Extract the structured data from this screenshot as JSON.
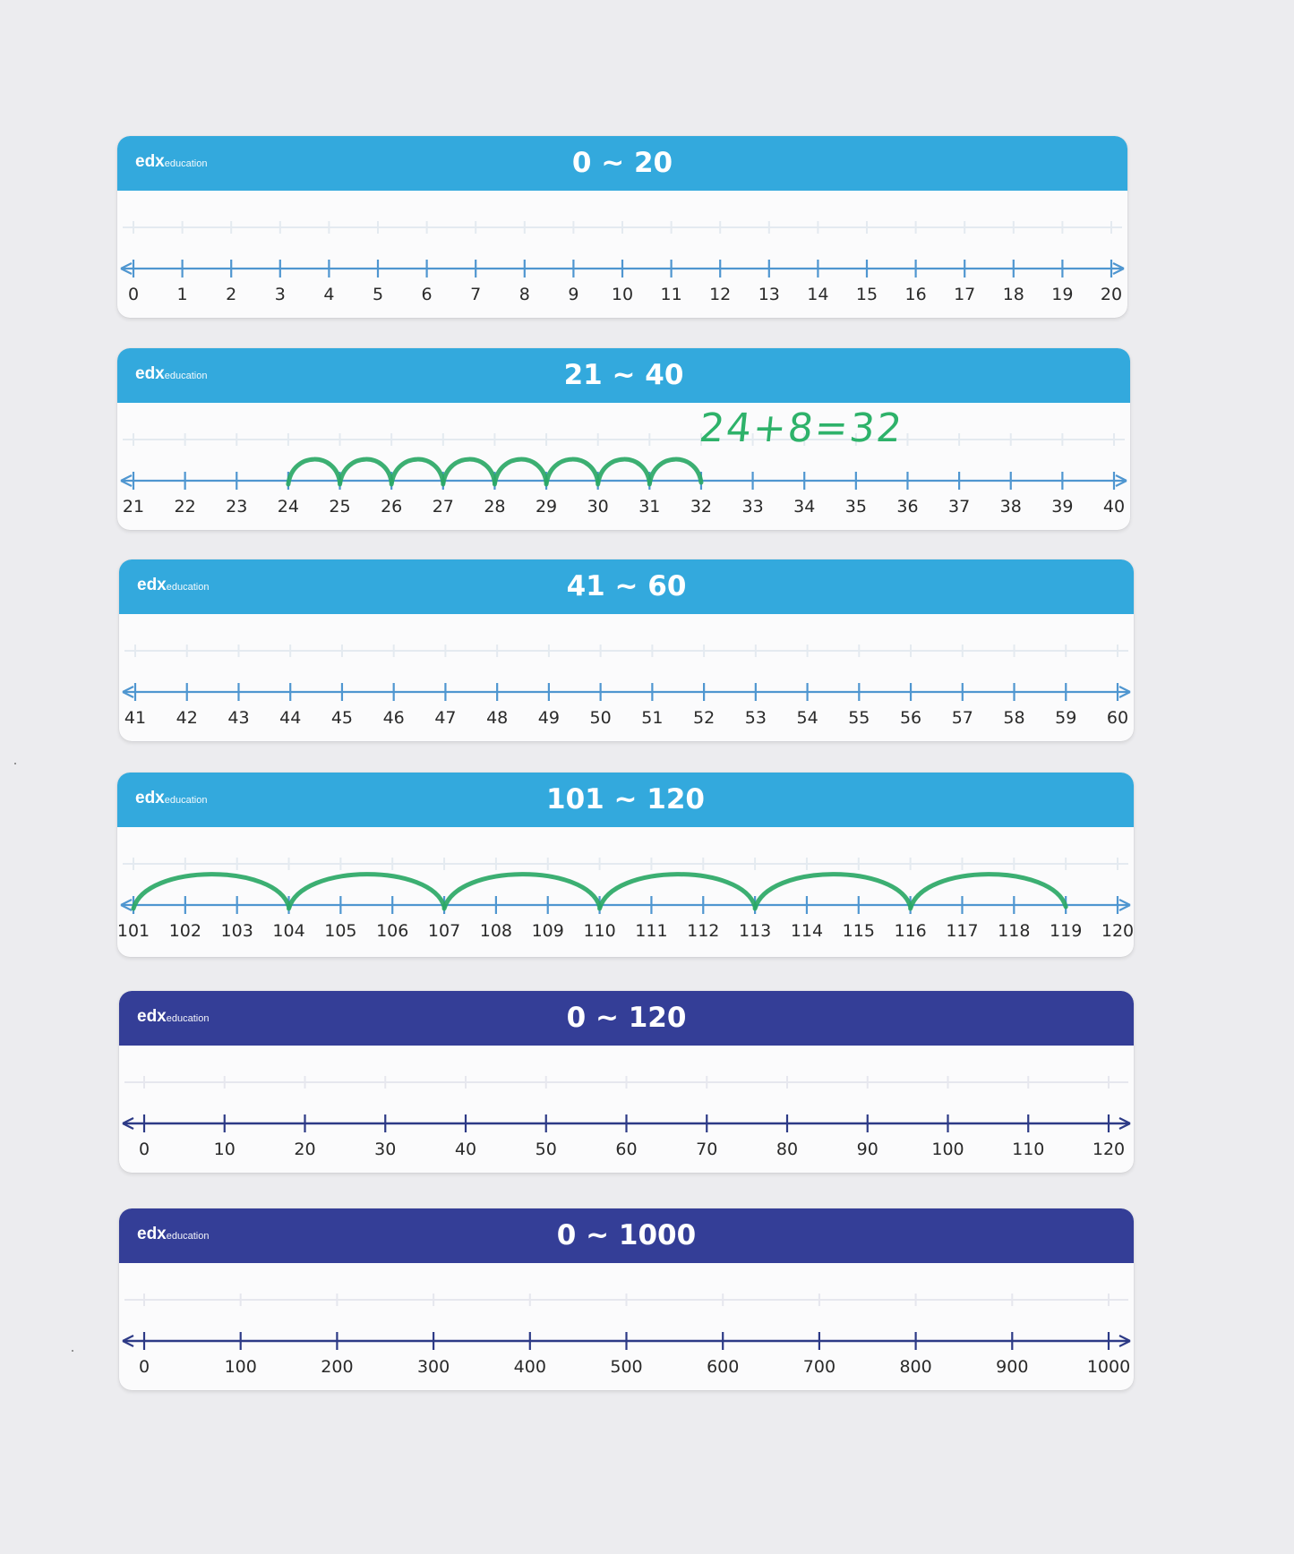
{
  "brand": {
    "main": "edx",
    "sub": "education"
  },
  "boards": [
    {
      "title": "0 ~ 20",
      "theme": "light",
      "start": 0,
      "step": 1,
      "count": 21,
      "labels": [
        "0",
        "1",
        "2",
        "3",
        "4",
        "5",
        "6",
        "7",
        "8",
        "9",
        "10",
        "11",
        "12",
        "13",
        "14",
        "15",
        "16",
        "17",
        "18",
        "19",
        "20"
      ],
      "jumps": []
    },
    {
      "title": "21 ~ 40",
      "theme": "light",
      "start": 21,
      "step": 1,
      "count": 20,
      "labels": [
        "21",
        "22",
        "23",
        "24",
        "25",
        "26",
        "27",
        "28",
        "29",
        "30",
        "31",
        "32",
        "33",
        "34",
        "35",
        "36",
        "37",
        "38",
        "39",
        "40"
      ],
      "jumps": [
        [
          24,
          25
        ],
        [
          25,
          26
        ],
        [
          26,
          27
        ],
        [
          27,
          28
        ],
        [
          28,
          29
        ],
        [
          29,
          30
        ],
        [
          30,
          31
        ],
        [
          31,
          32
        ]
      ],
      "annotation": "24+8=32"
    },
    {
      "title": "41 ~ 60",
      "theme": "light",
      "start": 41,
      "step": 1,
      "count": 20,
      "labels": [
        "41",
        "42",
        "43",
        "44",
        "45",
        "46",
        "47",
        "48",
        "49",
        "50",
        "51",
        "52",
        "53",
        "54",
        "55",
        "56",
        "57",
        "58",
        "59",
        "60"
      ],
      "jumps": []
    },
    {
      "title": "101 ~ 120",
      "theme": "light",
      "start": 101,
      "step": 1,
      "count": 20,
      "labels": [
        "101",
        "102",
        "103",
        "104",
        "105",
        "106",
        "107",
        "108",
        "109",
        "110",
        "111",
        "112",
        "113",
        "114",
        "115",
        "116",
        "117",
        "118",
        "119",
        "120"
      ],
      "jumps": [
        [
          101,
          104
        ],
        [
          104,
          107
        ],
        [
          107,
          110
        ],
        [
          110,
          113
        ],
        [
          113,
          116
        ],
        [
          116,
          119
        ]
      ]
    },
    {
      "title": "0 ~ 120",
      "theme": "dark",
      "start": 0,
      "step": 10,
      "count": 13,
      "labels": [
        "0",
        "10",
        "20",
        "30",
        "40",
        "50",
        "60",
        "70",
        "80",
        "90",
        "100",
        "110",
        "120"
      ],
      "jumps": []
    },
    {
      "title": "0 ~ 1000",
      "theme": "dark",
      "start": 0,
      "step": 100,
      "count": 11,
      "labels": [
        "0",
        "100",
        "200",
        "300",
        "400",
        "500",
        "600",
        "700",
        "800",
        "900",
        "1000"
      ],
      "jumps": []
    }
  ]
}
